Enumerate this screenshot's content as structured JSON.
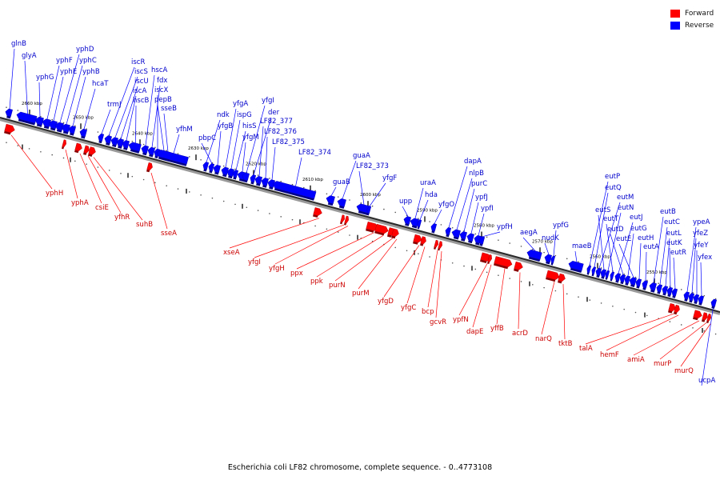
{
  "legend": {
    "forward_label": "Forward",
    "reverse_label": "Reverse",
    "forward_color": "#ff0000",
    "reverse_color": "#0000ff"
  },
  "caption": "Escherichia coli LF82 chromosome, complete sequence. - 0..4773108",
  "scale_labels": [
    "2660 kbp",
    "2650 kbp",
    "2640 kbp",
    "2630 kbp",
    "2620 kbp",
    "2610 kbp",
    "2600 kbp",
    "2590 kbp",
    "2580 kbp",
    "2570 kbp",
    "2560 kbp",
    "2550 kbp"
  ],
  "reverse_genes": [
    "glnB",
    "glyA",
    "yphG",
    "yphF",
    "yphE",
    "yphD",
    "yphC",
    "yphB",
    "hcaT",
    "trmJ",
    "iscR",
    "iscS",
    "iscU",
    "iscA",
    "hscB",
    "hscA",
    "fdx",
    "iscX",
    "pepB",
    "sseB",
    "yfhM",
    "ndk",
    "pbpC",
    "yfgB",
    "yfgA",
    "ispG",
    "hisS",
    "yfgM",
    "yfgI",
    "der",
    "LF82_377",
    "LF82_376",
    "LF82_375",
    "LF82_374",
    "guaB",
    "guaA",
    "LF82_373",
    "yfgF",
    "upp",
    "uraA",
    "hda",
    "yfgO",
    "dapA",
    "nlpB",
    "purC",
    "ypfJ",
    "ypfI",
    "ypfH",
    "aegA",
    "nudK",
    "ypfG",
    "maeB",
    "eutP",
    "eutQ",
    "eutM",
    "eutS",
    "eutN",
    "eutT",
    "eutJ",
    "eutD",
    "eutG",
    "eutE",
    "eutH",
    "eutA",
    "eutB",
    "eutC",
    "eutL",
    "eutK",
    "eutR",
    "ypeA",
    "yfeZ",
    "yfeY",
    "yfex",
    "ucpA"
  ],
  "forward_genes": [
    "yphH",
    "yphA",
    "csiE",
    "yfhR",
    "suhB",
    "sseA",
    "xseA",
    "yfgI",
    "yfgH",
    "ppx",
    "ppk",
    "purN",
    "purM",
    "yfgD",
    "yfgC",
    "bcp",
    "gcvR",
    "ypfN",
    "dapE",
    "yffB",
    "acrD",
    "narQ",
    "tktB",
    "talA",
    "hemF",
    "amiA",
    "murP",
    "murQ"
  ]
}
